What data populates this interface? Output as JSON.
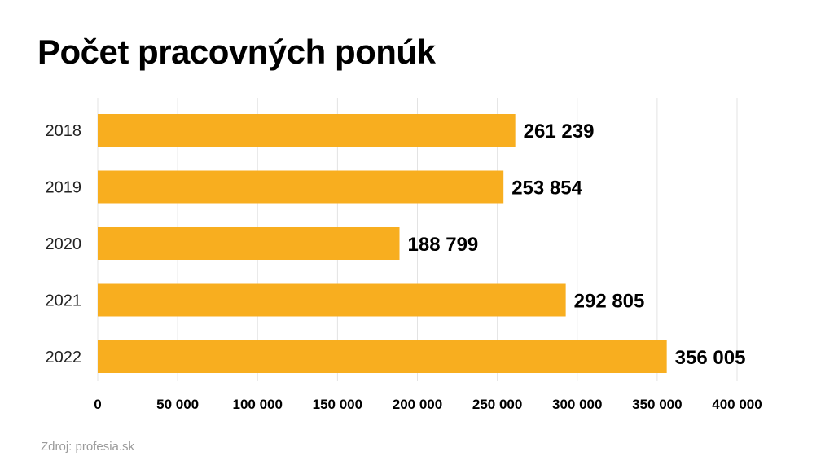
{
  "chart_data": {
    "type": "bar",
    "orientation": "horizontal",
    "title": "Počet pracovných ponúk",
    "categories": [
      "2018",
      "2019",
      "2020",
      "2021",
      "2022"
    ],
    "values": [
      261239,
      253854,
      188799,
      292805,
      356005
    ],
    "value_labels": [
      "261 239",
      "253 854",
      "188 799",
      "292 805",
      "356 005"
    ],
    "xlim": [
      0,
      400000
    ],
    "x_ticks": [
      0,
      50000,
      100000,
      150000,
      200000,
      250000,
      300000,
      350000,
      400000
    ],
    "x_tick_labels": [
      "0",
      "50 000",
      "100 000",
      "150 000",
      "200 000",
      "250 000",
      "300 000",
      "350 000",
      "400 000"
    ],
    "grid": "vertical",
    "bar_color": "#F8AE1F"
  },
  "source": "Zdroj: profesia.sk"
}
